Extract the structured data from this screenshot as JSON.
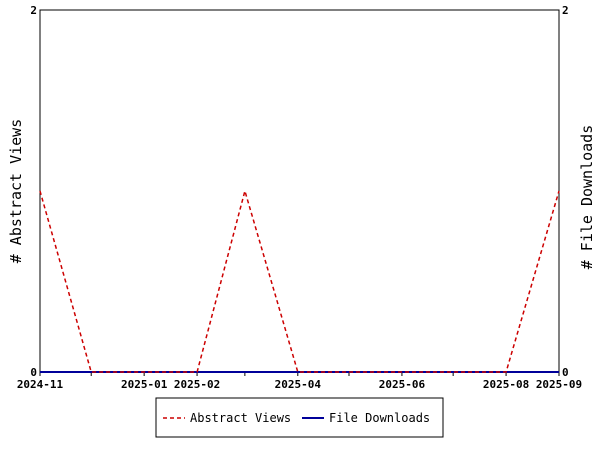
{
  "chart_data": {
    "type": "line",
    "title": "",
    "ylabel_left": "# Abstract Views",
    "ylabel_right": "# File Downloads",
    "x_ticks": [
      {
        "date": "2024-11",
        "label": "2024-11"
      },
      {
        "date": "2024-12",
        "label": ""
      },
      {
        "date": "2025-01",
        "label": "2025-01"
      },
      {
        "date": "2025-02",
        "label": "2025-02"
      },
      {
        "date": "2025-03",
        "label": ""
      },
      {
        "date": "2025-04",
        "label": "2025-04"
      },
      {
        "date": "2025-05",
        "label": ""
      },
      {
        "date": "2025-06",
        "label": "2025-06"
      },
      {
        "date": "2025-07",
        "label": ""
      },
      {
        "date": "2025-08",
        "label": "2025-08"
      },
      {
        "date": "2025-09",
        "label": "2025-09"
      }
    ],
    "y_left": {
      "min": 0,
      "max": 2,
      "tick_labels": [
        "0",
        "2"
      ]
    },
    "y_right": {
      "min": 0,
      "max": 2,
      "tick_labels": [
        "0",
        "2"
      ]
    },
    "series": [
      {
        "name": "Abstract Views",
        "color": "#cc0000",
        "style": "dashed",
        "axis": "left",
        "points": [
          {
            "x": "2024-11",
            "y": 1
          },
          {
            "x": "2024-12",
            "y": 0
          },
          {
            "x": "2025-01",
            "y": 0
          },
          {
            "x": "2025-02",
            "y": 0
          },
          {
            "x": "2025-03",
            "y": 1
          },
          {
            "x": "2025-04",
            "y": 0
          },
          {
            "x": "2025-05",
            "y": 0
          },
          {
            "x": "2025-06",
            "y": 0
          },
          {
            "x": "2025-07",
            "y": 0
          },
          {
            "x": "2025-08",
            "y": 0
          },
          {
            "x": "2025-09",
            "y": 1
          }
        ]
      },
      {
        "name": "File Downloads",
        "color": "#000099",
        "style": "solid",
        "axis": "right",
        "points": [
          {
            "x": "2024-11",
            "y": 0
          },
          {
            "x": "2024-12",
            "y": 0
          },
          {
            "x": "2025-01",
            "y": 0
          },
          {
            "x": "2025-02",
            "y": 0
          },
          {
            "x": "2025-03",
            "y": 0
          },
          {
            "x": "2025-04",
            "y": 0
          },
          {
            "x": "2025-05",
            "y": 0
          },
          {
            "x": "2025-06",
            "y": 0
          },
          {
            "x": "2025-07",
            "y": 0
          },
          {
            "x": "2025-08",
            "y": 0
          },
          {
            "x": "2025-09",
            "y": 0
          }
        ]
      }
    ],
    "legend": {
      "position": "bottom-center",
      "entries": [
        "Abstract Views",
        "File Downloads"
      ]
    },
    "grid": false
  }
}
